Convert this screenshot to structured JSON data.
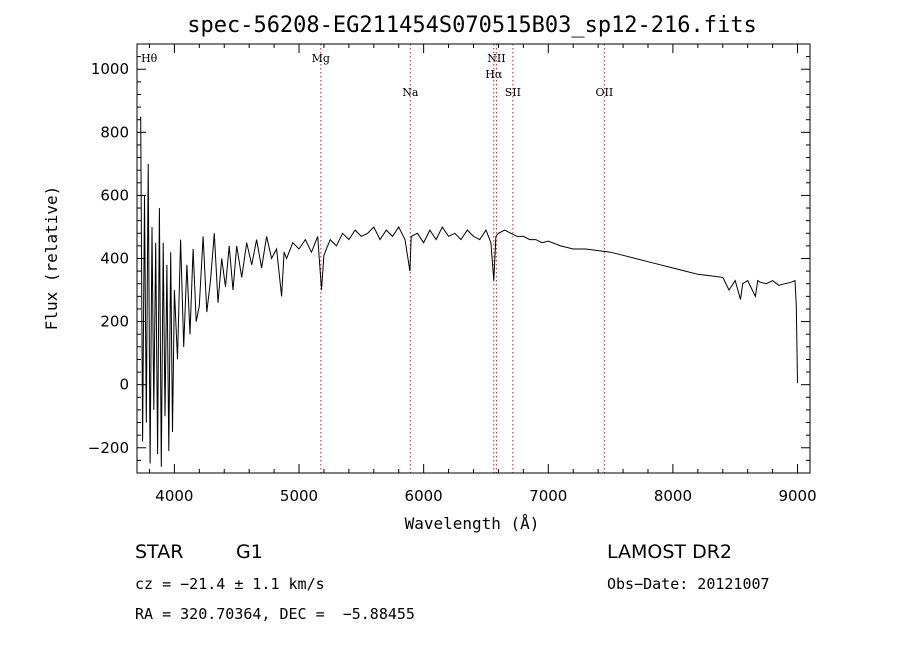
{
  "chart_data": {
    "type": "line",
    "title": "spec-56208-EG211454S070515B03_sp12-216.fits",
    "xlabel": "Wavelength (Å)",
    "ylabel": "Flux (relative)",
    "xlim": [
      3700,
      9100
    ],
    "ylim": [
      -280,
      1080
    ],
    "x_ticks": [
      4000,
      5000,
      6000,
      7000,
      8000,
      9000
    ],
    "y_ticks": [
      -200,
      0,
      200,
      400,
      600,
      800,
      1000
    ],
    "grid": false,
    "series": [
      {
        "color": "#000000",
        "x": [
          3730,
          3745,
          3760,
          3775,
          3790,
          3805,
          3820,
          3835,
          3850,
          3865,
          3880,
          3895,
          3910,
          3925,
          3940,
          3955,
          3970,
          3985,
          4000,
          4025,
          4050,
          4075,
          4100,
          4125,
          4150,
          4175,
          4200,
          4230,
          4260,
          4290,
          4320,
          4350,
          4380,
          4410,
          4440,
          4470,
          4500,
          4540,
          4580,
          4620,
          4660,
          4700,
          4740,
          4780,
          4820,
          4860,
          4880,
          4900,
          4950,
          5000,
          5050,
          5100,
          5150,
          5180,
          5200,
          5250,
          5300,
          5350,
          5400,
          5450,
          5500,
          5550,
          5600,
          5650,
          5700,
          5750,
          5800,
          5850,
          5890,
          5900,
          5950,
          6000,
          6050,
          6100,
          6150,
          6200,
          6250,
          6300,
          6350,
          6400,
          6450,
          6500,
          6540,
          6563,
          6580,
          6600,
          6650,
          6700,
          6750,
          6800,
          6850,
          6900,
          6950,
          7000,
          7100,
          7200,
          7300,
          7400,
          7500,
          7600,
          7700,
          7800,
          7900,
          8000,
          8100,
          8200,
          8300,
          8400,
          8450,
          8500,
          8542,
          8560,
          8600,
          8662,
          8680,
          8700,
          8750,
          8800,
          8850,
          8900,
          8950,
          8980,
          8990,
          9000
        ],
        "y": [
          850,
          -180,
          600,
          -120,
          700,
          -250,
          500,
          -80,
          450,
          -220,
          560,
          -260,
          450,
          -100,
          380,
          -210,
          420,
          -150,
          300,
          80,
          460,
          120,
          380,
          160,
          430,
          200,
          250,
          470,
          230,
          330,
          480,
          260,
          400,
          310,
          440,
          300,
          440,
          340,
          450,
          380,
          460,
          370,
          470,
          400,
          430,
          280,
          420,
          400,
          450,
          430,
          460,
          420,
          470,
          300,
          410,
          460,
          440,
          480,
          460,
          490,
          470,
          480,
          500,
          460,
          490,
          470,
          500,
          460,
          360,
          470,
          480,
          450,
          490,
          460,
          500,
          470,
          480,
          460,
          490,
          470,
          460,
          490,
          450,
          330,
          470,
          480,
          490,
          480,
          470,
          470,
          460,
          460,
          450,
          455,
          440,
          430,
          430,
          425,
          420,
          410,
          400,
          390,
          380,
          370,
          360,
          350,
          345,
          340,
          300,
          330,
          270,
          320,
          330,
          280,
          330,
          325,
          320,
          330,
          315,
          320,
          325,
          330,
          250,
          5
        ]
      }
    ],
    "line_markers": [
      {
        "label": "Hθ",
        "x": 3798,
        "row": 0,
        "show_line": false
      },
      {
        "label": "Mg",
        "x": 5175,
        "row": 0,
        "show_line": true
      },
      {
        "label": "Na",
        "x": 5893,
        "row": 2,
        "show_line": true
      },
      {
        "label": "NII",
        "x": 6584,
        "row": 0,
        "show_line": true
      },
      {
        "label": "Hα",
        "x": 6563,
        "row": 1,
        "show_line": true
      },
      {
        "label": "SII",
        "x": 6716,
        "row": 2,
        "show_line": true
      },
      {
        "label": "OII",
        "x": 7450,
        "row": 2,
        "show_line": true
      }
    ],
    "marker_color": "#cc2222"
  },
  "info": {
    "class": "STAR",
    "subclass": "G1",
    "survey": "LAMOST DR2",
    "cz": "cz = −21.4 ± 1.1 km/s",
    "obs_date": "Obs−Date: 20121007",
    "radec": "RA = 320.70364, DEC =  −5.88455"
  }
}
